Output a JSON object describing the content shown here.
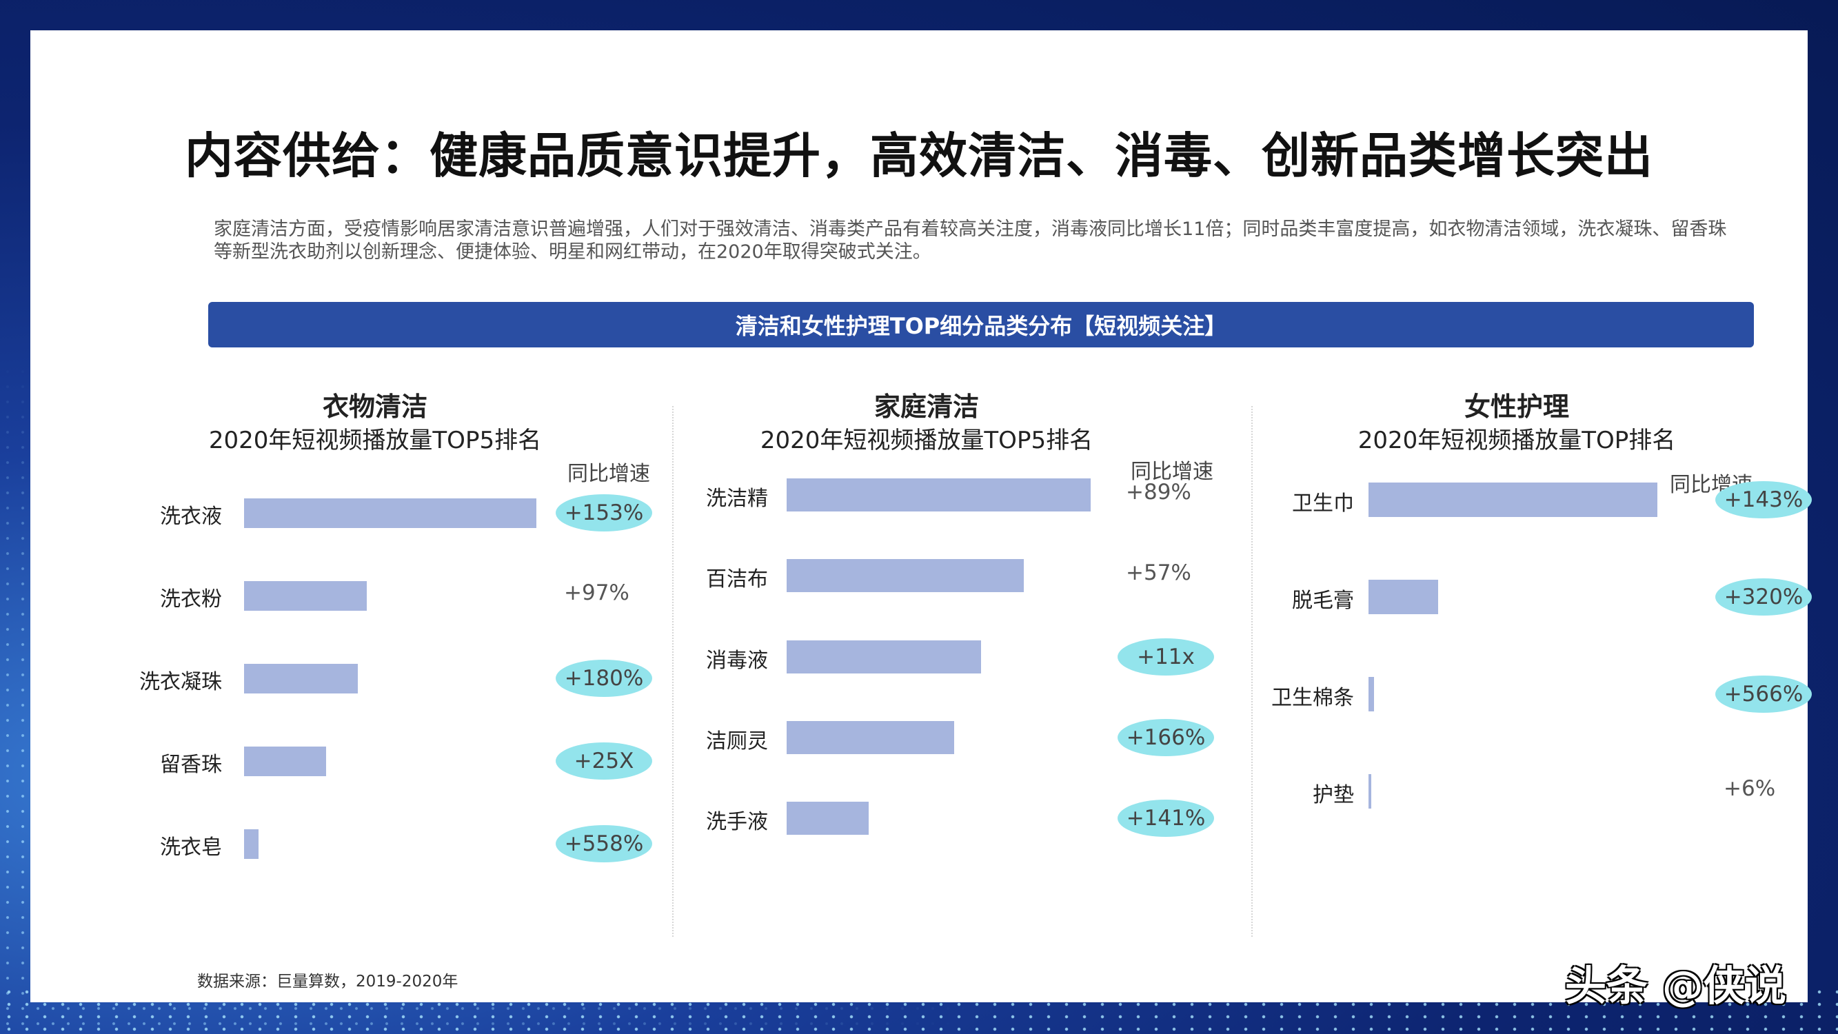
{
  "title": "内容供给：健康品质意识提升，高效清洁、消毒、创新品类增长突出",
  "description": "家庭清洁方面，受疫情影响居家清洁意识普遍增强，人们对于强效清洁、消毒类产品有着较高关注度，消毒液同比增长11倍；同时品类丰富度提高，如衣物清洁领域，洗衣凝珠、留香珠等新型洗衣助剂以创新理念、便捷体验、明星和网红带动，在2020年取得突破式关注。",
  "banner": "清洁和女性护理TOP细分品类分布【短视频关注】",
  "source": "数据来源：巨量算数，2019-2020年",
  "watermark": "头条 @侠说",
  "colors": {
    "banner": "#2a4ea3",
    "bar": "#a6b5de",
    "highlight": "#93e4ec"
  },
  "chart_data": [
    {
      "type": "bar",
      "title": "衣物清洁",
      "subtitle": "2020年短视频播放量TOP5排名",
      "growth_header": "同比增速",
      "categories": [
        "洗衣液",
        "洗衣粉",
        "洗衣凝珠",
        "留香珠",
        "洗衣皂"
      ],
      "values": [
        100,
        42,
        39,
        28,
        5
      ],
      "growth": [
        "+153%",
        "+97%",
        "+180%",
        "+25X",
        "+558%"
      ],
      "highlighted": [
        true,
        false,
        true,
        true,
        true
      ]
    },
    {
      "type": "bar",
      "title": "家庭清洁",
      "subtitle": "2020年短视频播放量TOP5排名",
      "growth_header": "同比增速",
      "categories": [
        "洗洁精",
        "百洁布",
        "消毒液",
        "洁厕灵",
        "洗手液"
      ],
      "values": [
        100,
        78,
        64,
        55,
        27
      ],
      "growth": [
        "+89%",
        "+57%",
        "+11x",
        "+166%",
        "+141%"
      ],
      "highlighted": [
        false,
        false,
        true,
        true,
        true
      ]
    },
    {
      "type": "bar",
      "title": "女性护理",
      "subtitle": "2020年短视频播放量TOP排名",
      "growth_header": "同比增速",
      "categories": [
        "卫生巾",
        "脱毛膏",
        "卫生棉条",
        "护垫"
      ],
      "values": [
        100,
        24,
        2,
        1
      ],
      "growth": [
        "+143%",
        "+320%",
        "+566%",
        "+6%"
      ],
      "highlighted": [
        true,
        true,
        true,
        false
      ]
    }
  ]
}
